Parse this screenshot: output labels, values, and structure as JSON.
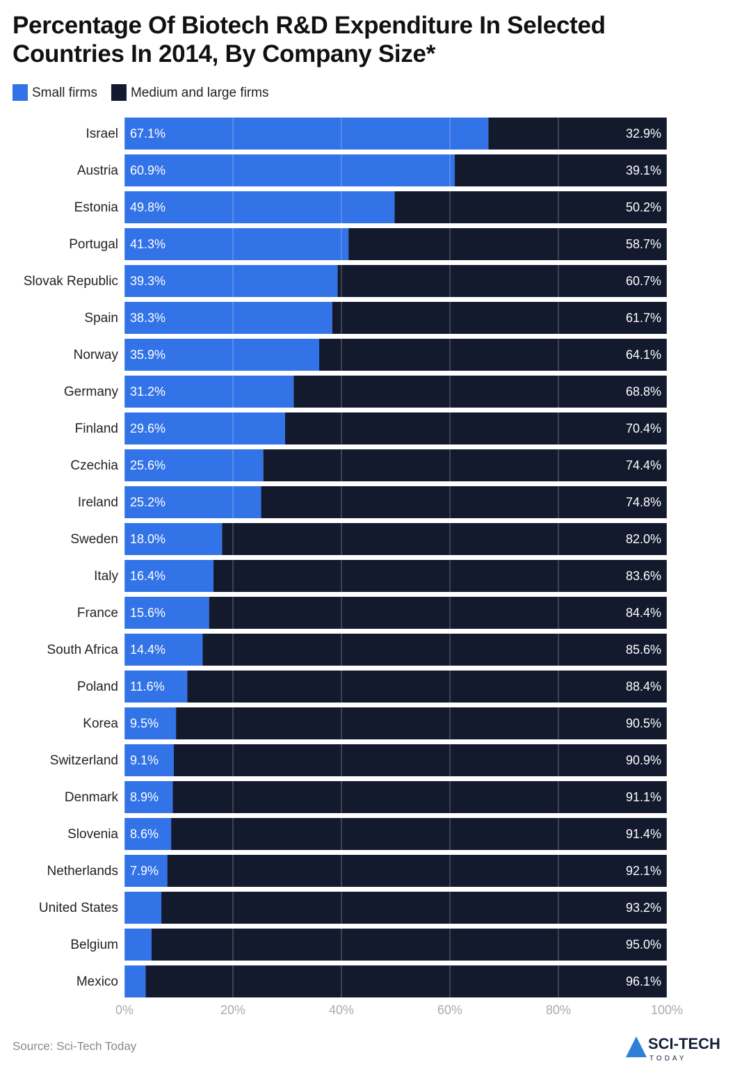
{
  "chart_data": {
    "type": "stacked-bar-horizontal",
    "title": "Percentage Of Biotech R&D Expenditure In Selected Countries In 2014, By Company Size*",
    "categories": [
      "Israel",
      "Austria",
      "Estonia",
      "Portugal",
      "Slovak Republic",
      "Spain",
      "Norway",
      "Germany",
      "Finland",
      "Czechia",
      "Ireland",
      "Sweden",
      "Italy",
      "France",
      "South Africa",
      "Poland",
      "Korea",
      "Switzerland",
      "Denmark",
      "Slovenia",
      "Netherlands",
      "United States",
      "Belgium",
      "Mexico"
    ],
    "series": [
      {
        "name": "Small firms",
        "color": "#3373e8",
        "values": [
          67.1,
          60.9,
          49.8,
          41.3,
          39.3,
          38.3,
          35.9,
          31.2,
          29.6,
          25.6,
          25.2,
          18.0,
          16.4,
          15.6,
          14.4,
          11.6,
          9.5,
          9.1,
          8.9,
          8.6,
          7.9,
          6.8,
          5.0,
          3.9
        ],
        "value_labels": [
          "67.1%",
          "60.9%",
          "49.8%",
          "41.3%",
          "39.3%",
          "38.3%",
          "35.9%",
          "31.2%",
          "29.6%",
          "25.6%",
          "25.2%",
          "18.0%",
          "16.4%",
          "15.6%",
          "14.4%",
          "11.6%",
          "9.5%",
          "9.1%",
          "8.9%",
          "8.6%",
          "7.9%",
          null,
          null,
          null
        ]
      },
      {
        "name": "Medium and large firms",
        "color": "#141a2e",
        "values": [
          32.9,
          39.1,
          50.2,
          58.7,
          60.7,
          61.7,
          64.1,
          68.8,
          70.4,
          74.4,
          74.8,
          82.0,
          83.6,
          84.4,
          85.6,
          88.4,
          90.5,
          90.9,
          91.1,
          91.4,
          92.1,
          93.2,
          95.0,
          96.1
        ],
        "value_labels": [
          "32.9%",
          "39.1%",
          "50.2%",
          "58.7%",
          "60.7%",
          "61.7%",
          "64.1%",
          "68.8%",
          "70.4%",
          "74.4%",
          "74.8%",
          "82.0%",
          "83.6%",
          "84.4%",
          "85.6%",
          "88.4%",
          "90.5%",
          "90.9%",
          "91.1%",
          "91.4%",
          "92.1%",
          "93.2%",
          "95.0%",
          "96.1%"
        ]
      }
    ],
    "xlim": [
      0,
      100
    ],
    "xticks": [
      {
        "value": 0,
        "label": "0%"
      },
      {
        "value": 20,
        "label": "20%"
      },
      {
        "value": 40,
        "label": "40%"
      },
      {
        "value": 60,
        "label": "60%"
      },
      {
        "value": 80,
        "label": "80%"
      },
      {
        "value": 100,
        "label": "100%"
      }
    ],
    "grid": true,
    "source": "Source: Sci-Tech Today",
    "logo": {
      "name": "SCI-TECH",
      "tagline": "TODAY"
    }
  }
}
